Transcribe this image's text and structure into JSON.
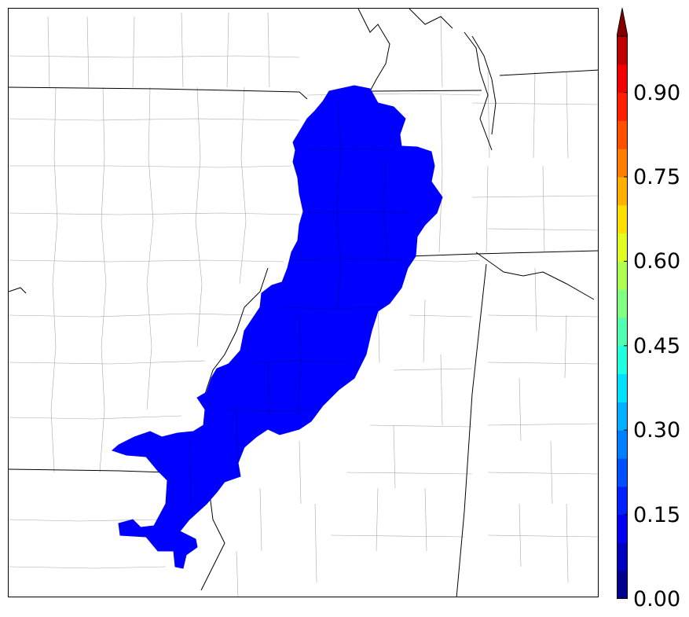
{
  "map": {
    "fill_color": "#0000ff",
    "state_line_color": "#000000",
    "county_line_color": "#a0a0a0"
  },
  "colorbar": {
    "min": 0.0,
    "max": 1.0,
    "extend": "max",
    "colors": [
      "#00008f",
      "#0000c0",
      "#0000f0",
      "#0020ff",
      "#0050ff",
      "#0080ff",
      "#00b0ff",
      "#00e0ff",
      "#20ffe0",
      "#50ffb0",
      "#80ff80",
      "#b0ff50",
      "#e0ff20",
      "#ffe000",
      "#ffb000",
      "#ff8000",
      "#ff5000",
      "#ff2000",
      "#f00000",
      "#c00000",
      "#800000"
    ],
    "ticks": [
      {
        "value": 0.0,
        "label": "0.00"
      },
      {
        "value": 0.15,
        "label": "0.15"
      },
      {
        "value": 0.3,
        "label": "0.30"
      },
      {
        "value": 0.45,
        "label": "0.45"
      },
      {
        "value": 0.6,
        "label": "0.60"
      },
      {
        "value": 0.75,
        "label": "0.75"
      },
      {
        "value": 0.9,
        "label": "0.90"
      }
    ]
  }
}
